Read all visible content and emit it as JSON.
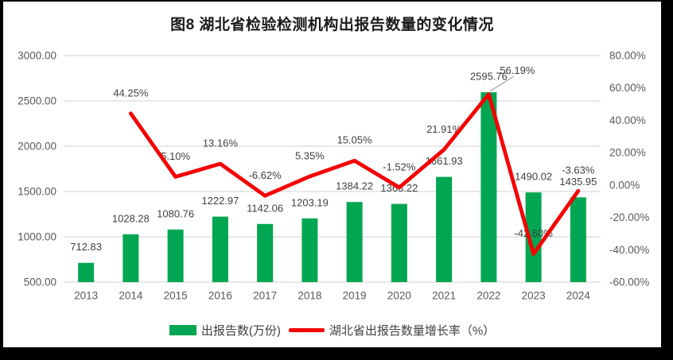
{
  "chart_data": {
    "type": "combo",
    "title": "图8  湖北省检验检测机构出报告数量的变化情况",
    "categories": [
      "2013",
      "2014",
      "2015",
      "2016",
      "2017",
      "2018",
      "2019",
      "2020",
      "2021",
      "2022",
      "2023",
      "2024"
    ],
    "series": [
      {
        "name": "出报告数(万份)",
        "type": "bar",
        "axis": "left",
        "color": "#00A651",
        "values": [
          712.83,
          1028.28,
          1080.76,
          1222.97,
          1142.06,
          1203.19,
          1384.22,
          1363.22,
          1661.93,
          2595.76,
          1490.02,
          1435.95
        ],
        "data_labels": [
          "712.83",
          "1028.28",
          "1080.76",
          "1222.97",
          "1142.06",
          "1203.19",
          "1384.22",
          "1363.22",
          "1661.93",
          "2595.76",
          "1490.02",
          "1435.95"
        ]
      },
      {
        "name": "湖北省出报告数量增长率（%）",
        "type": "line",
        "axis": "right",
        "color": "#F40000",
        "values": [
          null,
          44.25,
          5.1,
          13.16,
          -6.62,
          5.35,
          15.05,
          -1.52,
          21.91,
          56.19,
          -42.6,
          -3.63
        ],
        "data_labels": [
          null,
          "44.25%",
          "5.10%",
          "13.16%",
          "-6.62%",
          "5.35%",
          "15.05%",
          "-1.52%",
          "21.91%",
          "56.19%",
          "-42.60%",
          "-3.63%"
        ]
      }
    ],
    "left_axis": {
      "min": 500,
      "max": 3000,
      "tick_labels": [
        "3000.00",
        "2500.00",
        "2000.00",
        "1500.00",
        "1000.00",
        "500.00"
      ]
    },
    "right_axis": {
      "min": -60,
      "max": 80,
      "tick_labels": [
        "80.00%",
        "60.00%",
        "40.00%",
        "20.00%",
        "0.00%",
        "-20.00%",
        "-40.00%",
        "-60.00%"
      ]
    },
    "grid": true,
    "legend_position": "bottom",
    "callout": {
      "series": 1,
      "index": 9,
      "label": "56.19%"
    },
    "colors": {
      "gridline": "#D9D9D9",
      "axis_text": "#595959",
      "data_label_text": "#3F3F3F",
      "leader_line": "#A6A6A6",
      "panel_bg": "#FFFFFF",
      "frame_bg": "#000000",
      "title_text": "#1A1A1A"
    }
  }
}
